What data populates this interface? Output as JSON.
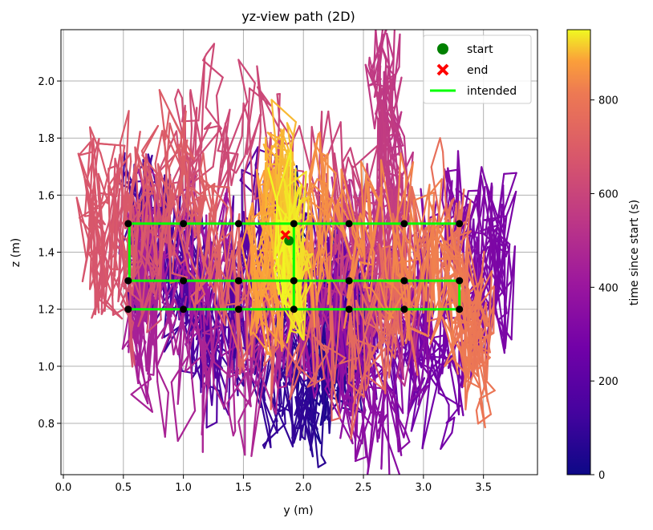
{
  "chart_data": {
    "type": "line",
    "title": "yz-view path (2D)",
    "xlabel": "y (m)",
    "ylabel": "z (m)",
    "xlim": [
      -0.02,
      3.95
    ],
    "ylim": [
      0.62,
      2.18
    ],
    "grid": true,
    "x_ticks": [
      0.0,
      0.5,
      1.0,
      1.5,
      2.0,
      2.5,
      3.0,
      3.5
    ],
    "x_tick_labels": [
      "0.0",
      "0.5",
      "1.0",
      "1.5",
      "2.0",
      "2.5",
      "3.0",
      "3.5"
    ],
    "y_ticks": [
      0.8,
      1.0,
      1.2,
      1.4,
      1.6,
      1.8,
      2.0
    ],
    "y_tick_labels": [
      "0.8",
      "1.0",
      "1.2",
      "1.4",
      "1.6",
      "1.8",
      "2.0"
    ],
    "legend": {
      "position": "top-right",
      "entries": [
        {
          "label": "start",
          "marker": "circle",
          "color": "#008000"
        },
        {
          "label": "end",
          "marker": "x",
          "color": "#ff0000"
        },
        {
          "label": "intended",
          "marker": "line",
          "color": "#00ff00"
        }
      ]
    },
    "colorbar": {
      "label": "time since start (s)",
      "colormap": "plasma",
      "range": [
        0,
        950
      ],
      "ticks": [
        0,
        200,
        400,
        600,
        800
      ],
      "tick_labels": [
        "0",
        "200",
        "400",
        "600",
        "800"
      ]
    },
    "start_point": {
      "x": 1.88,
      "z": 1.44
    },
    "end_point": {
      "x": 1.85,
      "z": 1.46
    },
    "intended_path": {
      "color": "#00ff00",
      "x": [
        3.3,
        0.55,
        0.55,
        3.3,
        3.3,
        0.55,
        1.92,
        1.92
      ],
      "z": [
        1.5,
        1.5,
        1.3,
        1.3,
        1.2,
        1.2,
        1.2,
        1.5
      ]
    },
    "waypoints": {
      "color": "#000000",
      "x": [
        0.54,
        1.0,
        1.46,
        1.92,
        2.38,
        2.84,
        3.3,
        0.54,
        1.0,
        1.46,
        1.92,
        2.38,
        2.84,
        3.3,
        0.54,
        1.0,
        1.46,
        1.92,
        2.38,
        2.84,
        3.3
      ],
      "z": [
        1.5,
        1.5,
        1.5,
        1.5,
        1.5,
        1.5,
        1.5,
        1.3,
        1.3,
        1.3,
        1.3,
        1.3,
        1.3,
        1.3,
        1.2,
        1.2,
        1.2,
        1.2,
        1.2,
        1.2,
        1.2
      ]
    },
    "trajectory": {
      "time": [
        0,
        25,
        50,
        75,
        100,
        125,
        150,
        175,
        200,
        225,
        250,
        275,
        300,
        325,
        350,
        375,
        400,
        425,
        450,
        475,
        500,
        525,
        550,
        575,
        600,
        625,
        650,
        675,
        700,
        725,
        750,
        775,
        800,
        825,
        850,
        875,
        900,
        925,
        950
      ],
      "x": [
        1.88,
        2.1,
        2.45,
        2.05,
        1.65,
        0.55,
        0.9,
        1.3,
        1.6,
        2.3,
        2.7,
        3.15,
        3.7,
        3.25,
        2.6,
        2.15,
        1.35,
        0.7,
        0.62,
        1.55,
        2.35,
        2.9,
        2.65,
        2.75,
        2.3,
        1.2,
        0.6,
        0.18,
        0.95,
        1.5,
        2.5,
        3.2,
        3.5,
        3.15,
        2.2,
        1.6,
        1.82,
        1.96,
        1.85
      ],
      "z": [
        1.44,
        1.03,
        1.18,
        0.92,
        1.04,
        1.5,
        1.38,
        1.1,
        1.54,
        1.28,
        1.15,
        0.98,
        1.35,
        1.45,
        0.8,
        1.15,
        1.3,
        1.45,
        1.1,
        0.98,
        1.42,
        1.22,
        2.1,
        1.35,
        1.6,
        1.85,
        1.3,
        1.52,
        1.65,
        1.22,
        1.05,
        1.48,
        1.0,
        1.35,
        1.52,
        1.3,
        1.68,
        1.35,
        1.46
      ]
    }
  }
}
